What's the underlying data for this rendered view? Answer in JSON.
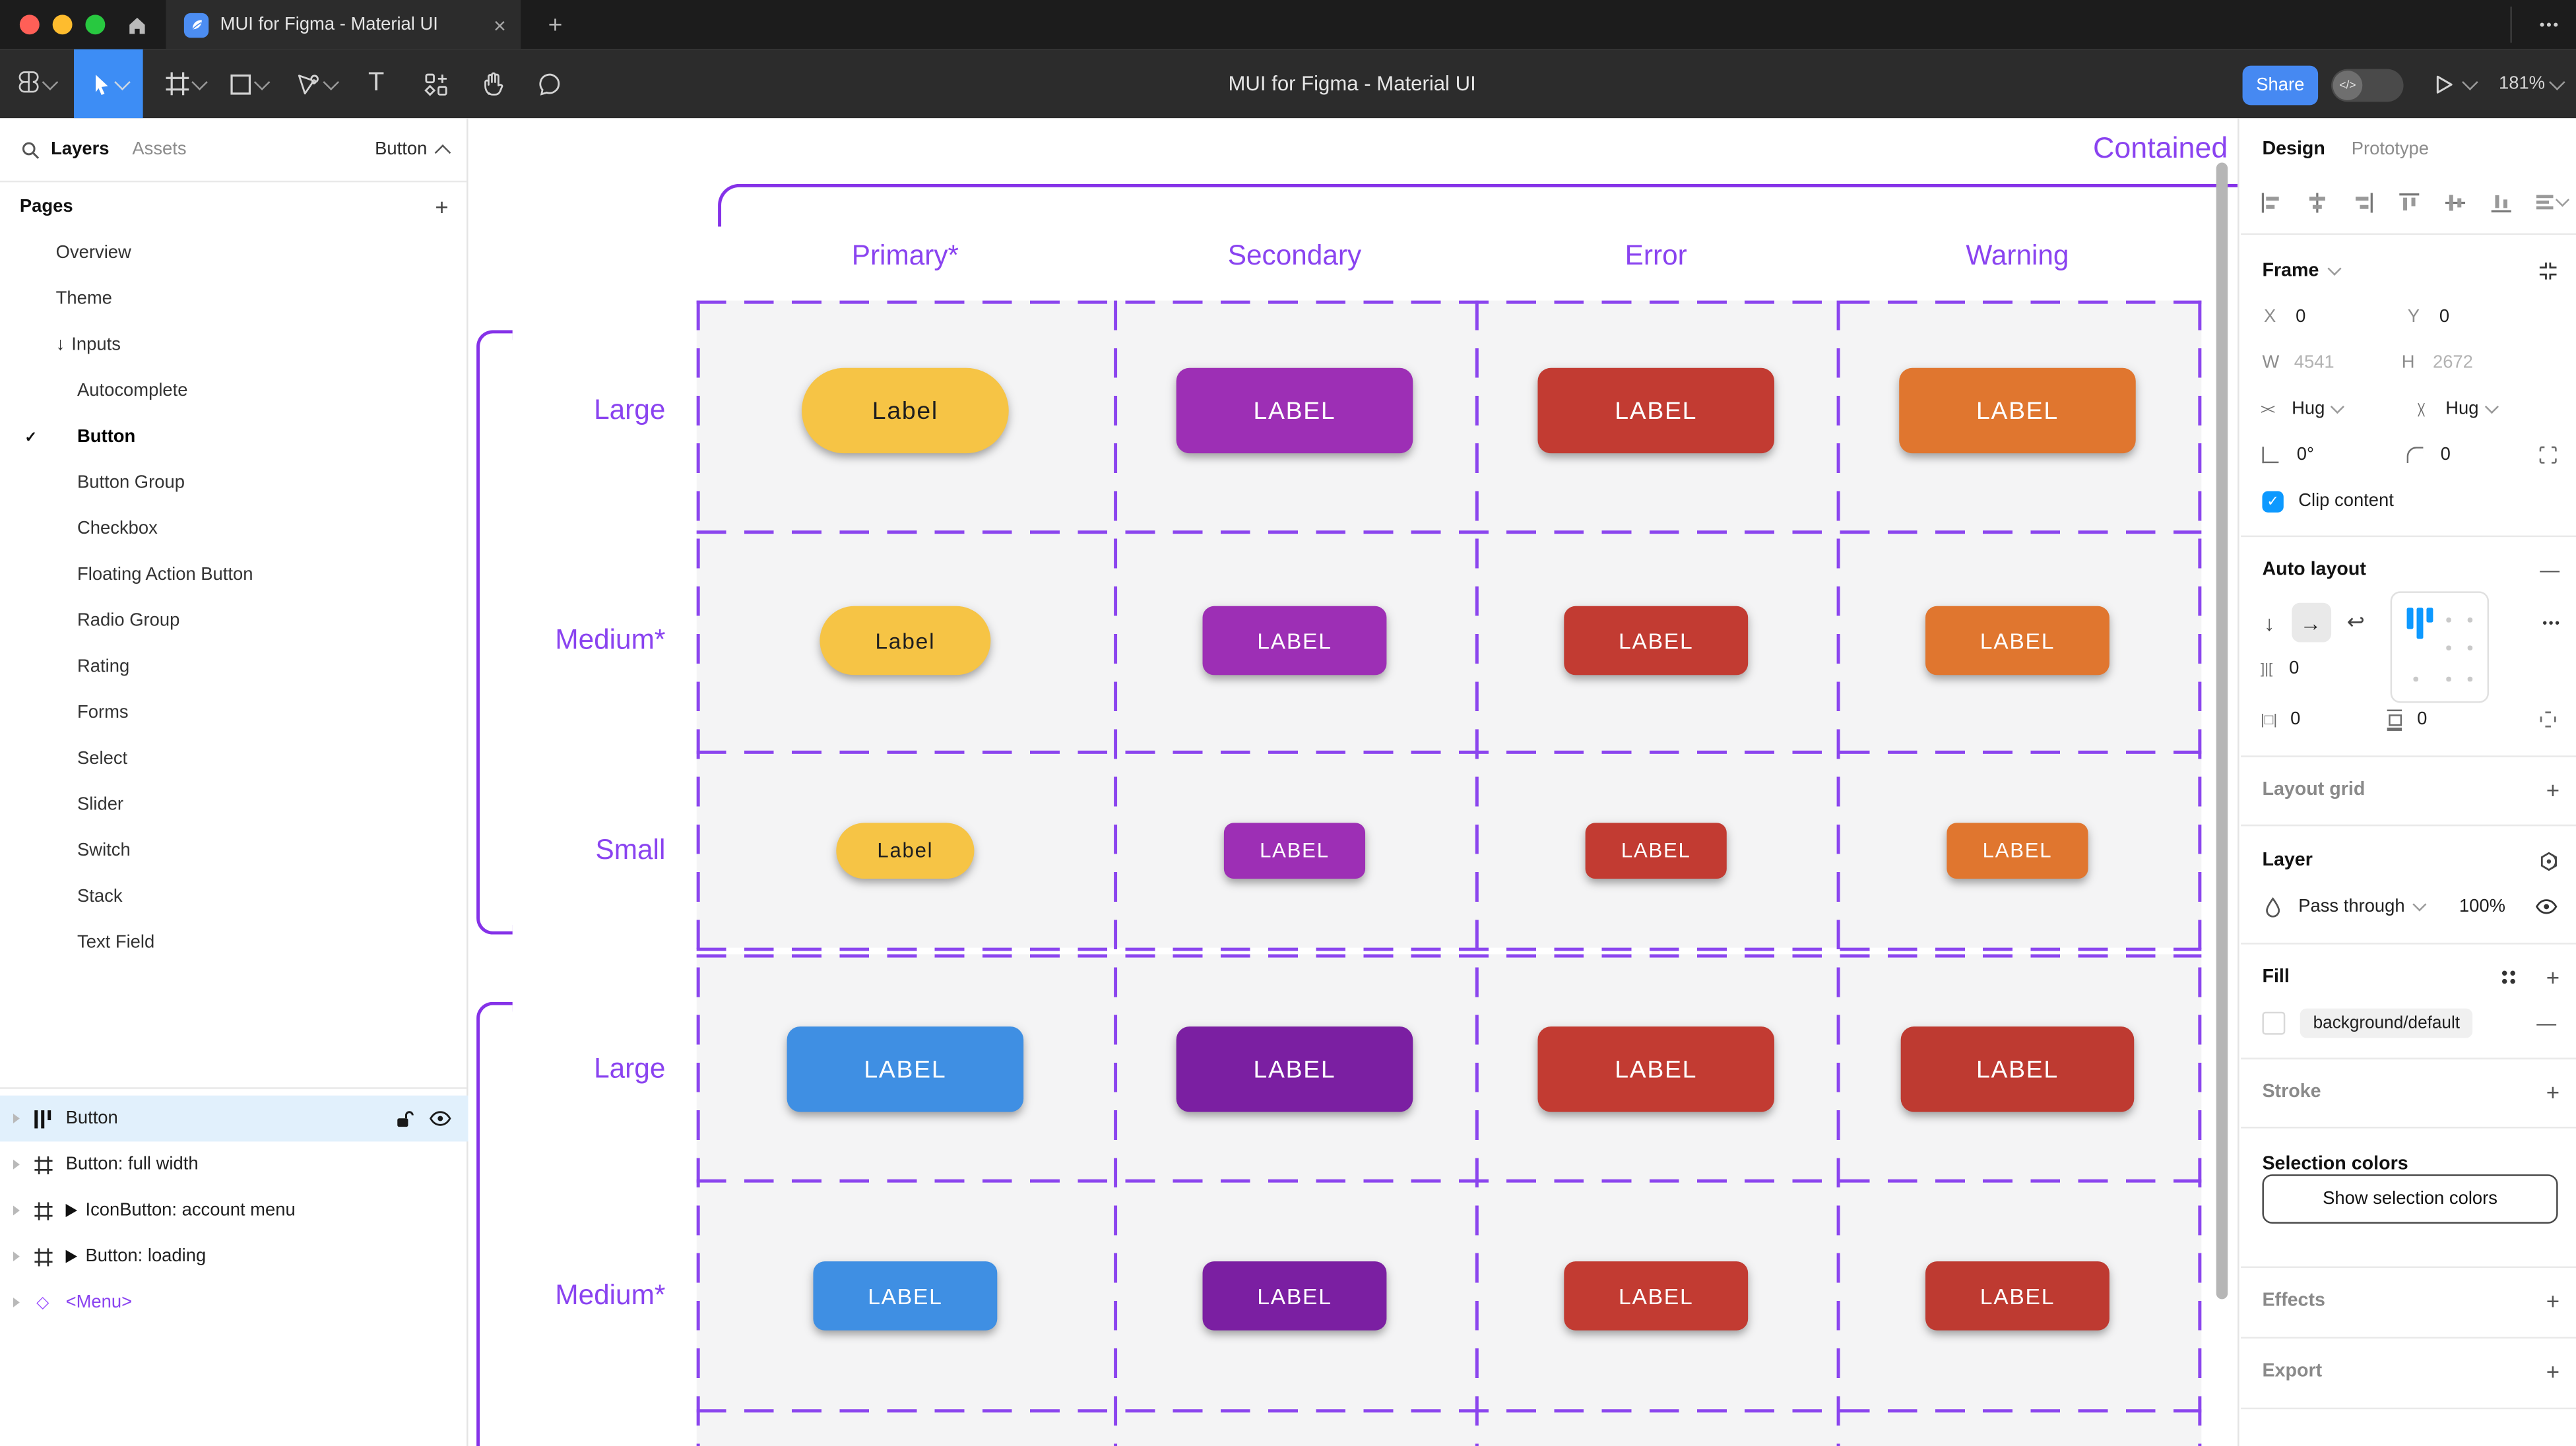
{
  "window": {
    "tab_title": "MUI for Figma - Material UI",
    "toolbar_title": "MUI for Figma - Material UI",
    "tab_close": "×",
    "tab_new": "+",
    "more_ellipsis": "•••",
    "share_label": "Share",
    "zoom_level": "181%",
    "traffic_colors": [
      "#FF5F57",
      "#FEBC2E",
      "#28C840"
    ]
  },
  "sidebar": {
    "layers_tab": "Layers",
    "assets_tab": "Assets",
    "page_indicator": "Button",
    "pages_header": "Pages",
    "pages_add": "+",
    "pages": [
      {
        "label": "Overview",
        "level": 1
      },
      {
        "label": "Theme",
        "level": 1
      },
      {
        "label": "Inputs",
        "level": 1,
        "prefix": "↓"
      },
      {
        "label": "Autocomplete",
        "level": 2
      },
      {
        "label": "Button",
        "level": 2,
        "selected": true,
        "check": "✓"
      },
      {
        "label": "Button Group",
        "level": 2
      },
      {
        "label": "Checkbox",
        "level": 2
      },
      {
        "label": "Floating Action Button",
        "level": 2
      },
      {
        "label": "Radio Group",
        "level": 2
      },
      {
        "label": "Rating",
        "level": 2
      },
      {
        "label": "Forms",
        "level": 2
      },
      {
        "label": "Select",
        "level": 2
      },
      {
        "label": "Slider",
        "level": 2
      },
      {
        "label": "Switch",
        "level": 2
      },
      {
        "label": "Stack",
        "level": 2
      },
      {
        "label": "Text Field",
        "level": 2
      }
    ],
    "layers": [
      {
        "label": "Button",
        "icon": "auto-layout",
        "selected": true
      },
      {
        "label": "Button: full width",
        "icon": "frame"
      },
      {
        "label": "IconButton: account menu",
        "icon": "frame",
        "instance": true
      },
      {
        "label": "Button: loading",
        "icon": "frame",
        "instance": true
      },
      {
        "label": "<Menu>",
        "icon": "component",
        "purple": true
      }
    ]
  },
  "canvas": {
    "frame_title": "Contained",
    "columns": [
      "Primary*",
      "Secondary",
      "Error",
      "Warning"
    ],
    "rows": [
      "Large",
      "Medium*",
      "Small",
      "Large",
      "Medium*"
    ],
    "button_grid": [
      [
        {
          "label": "Label",
          "bg": "#F6C445",
          "fg": "#1F1F1F",
          "w": 126,
          "h": 52,
          "r": 26,
          "fs": 15
        },
        {
          "label": "LABEL",
          "bg": "#9D2FB5",
          "fg": "#FFFFFF",
          "w": 144,
          "h": 52,
          "r": 8,
          "fs": 15
        },
        {
          "label": "LABEL",
          "bg": "#C23B32",
          "fg": "#FFFFFF",
          "w": 144,
          "h": 52,
          "r": 8,
          "fs": 15
        },
        {
          "label": "LABEL",
          "bg": "#E0762F",
          "fg": "#FFFFFF",
          "w": 144,
          "h": 52,
          "r": 8,
          "fs": 15
        }
      ],
      [
        {
          "label": "Label",
          "bg": "#F6C445",
          "fg": "#1F1F1F",
          "w": 104,
          "h": 42,
          "r": 21,
          "fs": 13.5
        },
        {
          "label": "LABEL",
          "bg": "#9D2FB5",
          "fg": "#FFFFFF",
          "w": 112,
          "h": 42,
          "r": 7,
          "fs": 13.5
        },
        {
          "label": "LABEL",
          "bg": "#C23B32",
          "fg": "#FFFFFF",
          "w": 112,
          "h": 42,
          "r": 7,
          "fs": 13.5
        },
        {
          "label": "LABEL",
          "bg": "#E0762F",
          "fg": "#FFFFFF",
          "w": 112,
          "h": 42,
          "r": 7,
          "fs": 13.5
        }
      ],
      [
        {
          "label": "Label",
          "bg": "#F6C445",
          "fg": "#1F1F1F",
          "w": 84,
          "h": 34,
          "r": 17,
          "fs": 12.5
        },
        {
          "label": "LABEL",
          "bg": "#9D2FB5",
          "fg": "#FFFFFF",
          "w": 86,
          "h": 34,
          "r": 6,
          "fs": 12.5
        },
        {
          "label": "LABEL",
          "bg": "#C23B32",
          "fg": "#FFFFFF",
          "w": 86,
          "h": 34,
          "r": 6,
          "fs": 12.5
        },
        {
          "label": "LABEL",
          "bg": "#E0762F",
          "fg": "#FFFFFF",
          "w": 86,
          "h": 34,
          "r": 6,
          "fs": 12.5
        }
      ],
      [
        {
          "label": "LABEL",
          "bg": "#3F8FE3",
          "fg": "#FFFFFF",
          "w": 144,
          "h": 52,
          "r": 8,
          "fs": 15
        },
        {
          "label": "LABEL",
          "bg": "#7B1FA2",
          "fg": "#FFFFFF",
          "w": 144,
          "h": 52,
          "r": 8,
          "fs": 15
        },
        {
          "label": "LABEL",
          "bg": "#C23B32",
          "fg": "#FFFFFF",
          "w": 144,
          "h": 52,
          "r": 8,
          "fs": 15
        },
        {
          "label": "LABEL",
          "bg": "#BE3A31",
          "fg": "#FFFFFF",
          "w": 142,
          "h": 52,
          "r": 8,
          "fs": 15
        }
      ],
      [
        {
          "label": "LABEL",
          "bg": "#3F8FE3",
          "fg": "#FFFFFF",
          "w": 112,
          "h": 42,
          "r": 7,
          "fs": 13.5
        },
        {
          "label": "LABEL",
          "bg": "#7B1FA2",
          "fg": "#FFFFFF",
          "w": 112,
          "h": 42,
          "r": 7,
          "fs": 13.5
        },
        {
          "label": "LABEL",
          "bg": "#C23B32",
          "fg": "#FFFFFF",
          "w": 112,
          "h": 42,
          "r": 7,
          "fs": 13.5
        },
        {
          "label": "LABEL",
          "bg": "#BE3A31",
          "fg": "#FFFFFF",
          "w": 112,
          "h": 42,
          "r": 7,
          "fs": 13.5
        }
      ]
    ],
    "purple_line_color": "#8532E8",
    "purple_dash_color": "#8B45EE",
    "purple_text_color": "#8A43F0"
  },
  "inspector": {
    "design_tab": "Design",
    "prototype_tab": "Prototype",
    "frame": {
      "section": "Frame",
      "x_label": "X",
      "x": "0",
      "y_label": "Y",
      "y": "0",
      "w_label": "W",
      "w": "4541",
      "h_label": "H",
      "h": "2672",
      "h_sizing": "Hug",
      "v_sizing": "Hug",
      "rotation": "0°",
      "radius": "0",
      "clip_label": "Clip content",
      "clip_checked": "✓"
    },
    "auto_layout": {
      "section": "Auto layout",
      "collapse": "—",
      "gap": "0",
      "pad_h": "0",
      "pad_v": "0",
      "more": "•••",
      "flow_down": "↓",
      "flow_right": "→",
      "flow_wrap": "↩"
    },
    "layout_grid": {
      "section": "Layout grid",
      "add": "+"
    },
    "layer": {
      "section": "Layer",
      "blend": "Pass through",
      "opacity": "100%"
    },
    "fill": {
      "section": "Fill",
      "token": "background/default",
      "remove": "—",
      "add": "+"
    },
    "stroke": {
      "section": "Stroke",
      "add": "+"
    },
    "selection_colors": {
      "section": "Selection colors",
      "button": "Show selection colors"
    },
    "effects": {
      "section": "Effects",
      "add": "+"
    },
    "export": {
      "section": "Export",
      "add": "+"
    },
    "accent_blue": "#0D99FF"
  }
}
